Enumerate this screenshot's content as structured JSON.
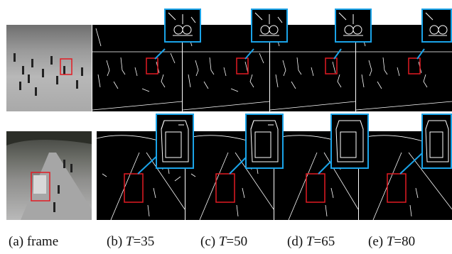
{
  "figure": {
    "captions": [
      {
        "label": "(a) frame",
        "prefix": "",
        "var": "",
        "suffix": ""
      },
      {
        "label": "(b) ",
        "var": "T",
        "suffix": "=35"
      },
      {
        "label": "(c) ",
        "var": "T",
        "suffix": "=50"
      },
      {
        "label": "(d) ",
        "var": "T",
        "suffix": "=65"
      },
      {
        "label": "(e) ",
        "var": "T",
        "suffix": "=80"
      }
    ],
    "colors": {
      "roi_box": "#e31b23",
      "zoom_border": "#1aa3e8",
      "edges": "#ffffff",
      "background": "#000000"
    }
  }
}
